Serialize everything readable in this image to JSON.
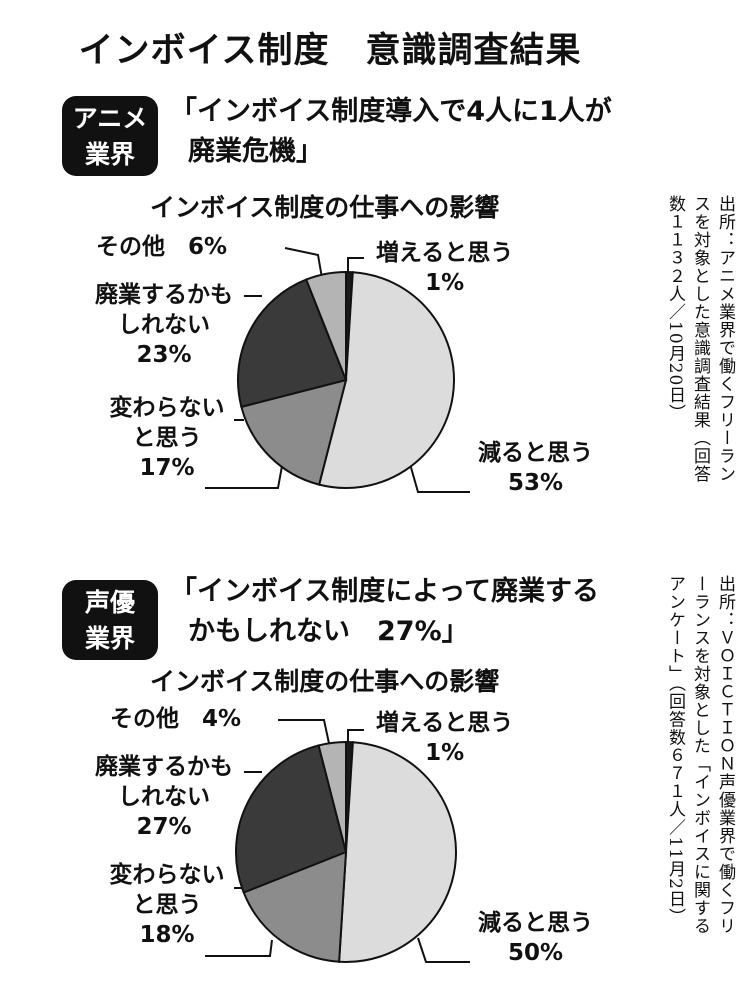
{
  "title": "インボイス制度　意識調査結果",
  "sections": [
    {
      "badge": [
        "アニメ",
        "業界"
      ],
      "headline": [
        "「インボイス制度導入で4人に1人が",
        "廃業危機」"
      ],
      "source": "出所：アニメ業界で働くフリーランスを対象とした意識調査結果（回答数１１３２人／10月20日）"
    },
    {
      "badge": [
        "声優",
        "業界"
      ],
      "headline": [
        "「インボイス制度によって廃業する",
        "かもしれない　27%」"
      ],
      "source": "出所：ＶＯＩＣＴＩＯＮ声優業界で働くフリーランスを対象とした「インボイスに関するアンケート」（回答数６７１人／11月2日）"
    }
  ],
  "chart_data": [
    {
      "type": "pie",
      "title": "インボイス制度の仕事への影響",
      "categories": [
        "増えると思う",
        "減ると思う",
        "変わらないと思う",
        "廃業するかもしれない",
        "その他"
      ],
      "values": [
        1,
        53,
        17,
        23,
        6
      ],
      "colors": [
        "#1a1a1a",
        "#dcdcdc",
        "#8c8c8c",
        "#3a3a3a",
        "#b4b4b4"
      ],
      "labels": {
        "increase": [
          "増えると思う",
          "1%"
        ],
        "decrease": [
          "減ると思う",
          "53%"
        ],
        "same": [
          "変わらないと思う",
          "17%"
        ],
        "quit": [
          "廃業するかもしれない",
          "23%"
        ],
        "other": [
          "その他",
          "6%"
        ]
      }
    },
    {
      "type": "pie",
      "title": "インボイス制度の仕事への影響",
      "categories": [
        "増えると思う",
        "減ると思う",
        "変わらないと思う",
        "廃業するかもしれない",
        "その他"
      ],
      "values": [
        1,
        50,
        18,
        27,
        4
      ],
      "colors": [
        "#1a1a1a",
        "#dcdcdc",
        "#8c8c8c",
        "#3a3a3a",
        "#b4b4b4"
      ],
      "labels": {
        "increase": [
          "増えると思う",
          "1%"
        ],
        "decrease": [
          "減ると思う",
          "50%"
        ],
        "same": [
          "変わらないと思う",
          "18%"
        ],
        "quit": [
          "廃業するかもしれない",
          "27%"
        ],
        "other": [
          "その他",
          "4%"
        ]
      }
    }
  ]
}
